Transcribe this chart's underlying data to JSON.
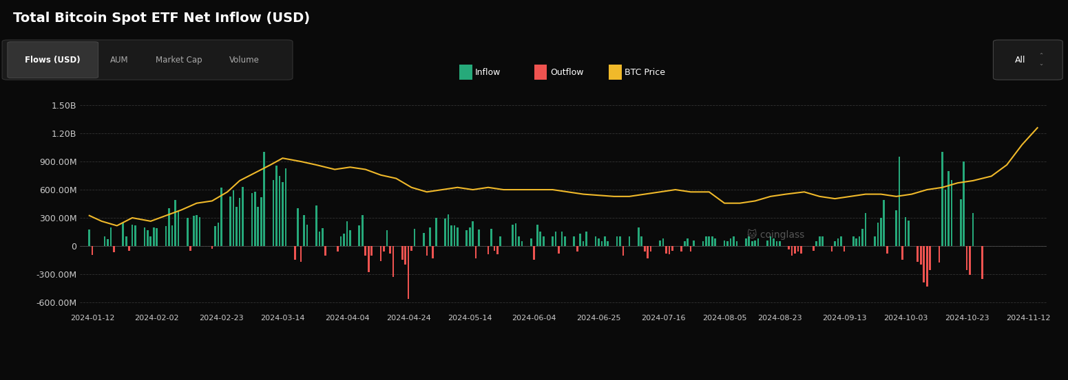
{
  "title": "Total Bitcoin Spot ETF Net Inflow (USD)",
  "bg_color": "#0a0a0a",
  "text_color": "#cccccc",
  "grid_color": "#333333",
  "inflow_color": "#26a97a",
  "outflow_color": "#ef5350",
  "btc_color": "#f0b92a",
  "ylabel_color": "#999999",
  "yticks": [
    "1.50B",
    "1.20B",
    "900.00M",
    "600.00M",
    "300.00M",
    "0",
    "-300.00M",
    "-600.00M"
  ],
  "ytick_vals": [
    1500000000,
    1200000000,
    900000000,
    600000000,
    300000000,
    0,
    -300000000,
    -600000000
  ],
  "ylim": [
    -700000000,
    1650000000
  ],
  "xtick_labels": [
    "2024-01-12",
    "2024-02-02",
    "2024-02-23",
    "2024-03-14",
    "2024-04-04",
    "2024-04-24",
    "2024-05-14",
    "2024-06-04",
    "2024-06-25",
    "2024-07-16",
    "2024-08-05",
    "2024-08-23",
    "2024-09-13",
    "2024-10-03",
    "2024-10-23",
    "2024-11-12"
  ],
  "bar_dates": [
    "2024-01-11",
    "2024-01-12",
    "2024-01-16",
    "2024-01-17",
    "2024-01-18",
    "2024-01-19",
    "2024-01-22",
    "2024-01-23",
    "2024-01-24",
    "2024-01-25",
    "2024-01-26",
    "2024-01-29",
    "2024-01-30",
    "2024-01-31",
    "2024-02-01",
    "2024-02-02",
    "2024-02-05",
    "2024-02-06",
    "2024-02-07",
    "2024-02-08",
    "2024-02-09",
    "2024-02-12",
    "2024-02-13",
    "2024-02-14",
    "2024-02-15",
    "2024-02-16",
    "2024-02-20",
    "2024-02-21",
    "2024-02-22",
    "2024-02-23",
    "2024-02-26",
    "2024-02-27",
    "2024-02-28",
    "2024-02-29",
    "2024-03-01",
    "2024-03-04",
    "2024-03-05",
    "2024-03-06",
    "2024-03-07",
    "2024-03-08",
    "2024-03-11",
    "2024-03-12",
    "2024-03-13",
    "2024-03-14",
    "2024-03-15",
    "2024-03-18",
    "2024-03-19",
    "2024-03-20",
    "2024-03-21",
    "2024-03-22",
    "2024-03-25",
    "2024-03-26",
    "2024-03-27",
    "2024-03-28",
    "2024-04-01",
    "2024-04-02",
    "2024-04-03",
    "2024-04-04",
    "2024-04-05",
    "2024-04-08",
    "2024-04-09",
    "2024-04-10",
    "2024-04-11",
    "2024-04-12",
    "2024-04-15",
    "2024-04-16",
    "2024-04-17",
    "2024-04-18",
    "2024-04-19",
    "2024-04-22",
    "2024-04-23",
    "2024-04-24",
    "2024-04-25",
    "2024-04-26",
    "2024-04-29",
    "2024-04-30",
    "2024-05-01",
    "2024-05-02",
    "2024-05-03",
    "2024-05-06",
    "2024-05-07",
    "2024-05-08",
    "2024-05-09",
    "2024-05-10",
    "2024-05-13",
    "2024-05-14",
    "2024-05-15",
    "2024-05-16",
    "2024-05-17",
    "2024-05-20",
    "2024-05-21",
    "2024-05-22",
    "2024-05-23",
    "2024-05-24",
    "2024-05-28",
    "2024-05-29",
    "2024-05-30",
    "2024-05-31",
    "2024-06-03",
    "2024-06-04",
    "2024-06-05",
    "2024-06-06",
    "2024-06-07",
    "2024-06-10",
    "2024-06-11",
    "2024-06-12",
    "2024-06-13",
    "2024-06-14",
    "2024-06-17",
    "2024-06-18",
    "2024-06-19",
    "2024-06-20",
    "2024-06-21",
    "2024-06-24",
    "2024-06-25",
    "2024-06-26",
    "2024-06-27",
    "2024-06-28",
    "2024-07-01",
    "2024-07-02",
    "2024-07-03",
    "2024-07-05",
    "2024-07-08",
    "2024-07-09",
    "2024-07-10",
    "2024-07-11",
    "2024-07-12",
    "2024-07-15",
    "2024-07-16",
    "2024-07-17",
    "2024-07-18",
    "2024-07-19",
    "2024-07-22",
    "2024-07-23",
    "2024-07-24",
    "2024-07-25",
    "2024-07-26",
    "2024-07-29",
    "2024-07-30",
    "2024-07-31",
    "2024-08-01",
    "2024-08-02",
    "2024-08-05",
    "2024-08-06",
    "2024-08-07",
    "2024-08-08",
    "2024-08-09",
    "2024-08-12",
    "2024-08-13",
    "2024-08-14",
    "2024-08-15",
    "2024-08-16",
    "2024-08-19",
    "2024-08-20",
    "2024-08-21",
    "2024-08-22",
    "2024-08-23",
    "2024-08-26",
    "2024-08-27",
    "2024-08-28",
    "2024-08-29",
    "2024-08-30",
    "2024-09-03",
    "2024-09-04",
    "2024-09-05",
    "2024-09-06",
    "2024-09-09",
    "2024-09-10",
    "2024-09-11",
    "2024-09-12",
    "2024-09-13",
    "2024-09-16",
    "2024-09-17",
    "2024-09-18",
    "2024-09-19",
    "2024-09-20",
    "2024-09-23",
    "2024-09-24",
    "2024-09-25",
    "2024-09-26",
    "2024-09-27",
    "2024-09-30",
    "2024-10-01",
    "2024-10-02",
    "2024-10-03",
    "2024-10-04",
    "2024-10-07",
    "2024-10-08",
    "2024-10-09",
    "2024-10-10",
    "2024-10-11",
    "2024-10-14",
    "2024-10-15",
    "2024-10-16",
    "2024-10-17",
    "2024-10-18",
    "2024-10-21",
    "2024-10-22",
    "2024-10-23",
    "2024-10-24",
    "2024-10-25",
    "2024-10-28",
    "2024-10-29",
    "2024-10-30",
    "2024-10-31",
    "2024-11-01",
    "2024-11-04",
    "2024-11-05",
    "2024-11-06",
    "2024-11-07",
    "2024-11-08",
    "2024-11-11",
    "2024-11-12",
    "2024-11-13",
    "2024-11-14",
    "2024-11-15"
  ],
  "bar_values": [
    178000000,
    -95000000,
    100000000,
    70000000,
    200000000,
    -70000000,
    250000000,
    100000000,
    -50000000,
    230000000,
    220000000,
    200000000,
    170000000,
    100000000,
    200000000,
    190000000,
    210000000,
    400000000,
    220000000,
    490000000,
    380000000,
    300000000,
    -50000000,
    320000000,
    330000000,
    310000000,
    -30000000,
    210000000,
    250000000,
    620000000,
    530000000,
    590000000,
    420000000,
    510000000,
    630000000,
    560000000,
    580000000,
    420000000,
    520000000,
    1000000000,
    700000000,
    860000000,
    750000000,
    680000000,
    830000000,
    -150000000,
    400000000,
    -170000000,
    330000000,
    230000000,
    430000000,
    150000000,
    190000000,
    -100000000,
    -60000000,
    100000000,
    130000000,
    260000000,
    170000000,
    220000000,
    330000000,
    -100000000,
    -280000000,
    -100000000,
    -160000000,
    -60000000,
    170000000,
    -80000000,
    -330000000,
    -150000000,
    -200000000,
    -563000000,
    -55000000,
    180000000,
    140000000,
    -100000000,
    200000000,
    -130000000,
    300000000,
    290000000,
    340000000,
    220000000,
    220000000,
    200000000,
    170000000,
    200000000,
    260000000,
    -130000000,
    175000000,
    -85000000,
    180000000,
    -50000000,
    -90000000,
    100000000,
    230000000,
    240000000,
    100000000,
    50000000,
    80000000,
    -150000000,
    230000000,
    150000000,
    100000000,
    100000000,
    150000000,
    -80000000,
    150000000,
    100000000,
    100000000,
    -60000000,
    130000000,
    50000000,
    150000000,
    100000000,
    80000000,
    50000000,
    100000000,
    50000000,
    100000000,
    100000000,
    -100000000,
    100000000,
    200000000,
    100000000,
    -60000000,
    -130000000,
    -60000000,
    60000000,
    80000000,
    -80000000,
    -90000000,
    -50000000,
    -60000000,
    50000000,
    80000000,
    -60000000,
    60000000,
    50000000,
    100000000,
    100000000,
    100000000,
    80000000,
    60000000,
    50000000,
    80000000,
    100000000,
    50000000,
    80000000,
    100000000,
    50000000,
    60000000,
    80000000,
    60000000,
    100000000,
    80000000,
    50000000,
    50000000,
    -40000000,
    -100000000,
    -80000000,
    -60000000,
    -80000000,
    -50000000,
    50000000,
    100000000,
    100000000,
    -60000000,
    50000000,
    80000000,
    100000000,
    -60000000,
    100000000,
    80000000,
    100000000,
    180000000,
    350000000,
    100000000,
    250000000,
    300000000,
    490000000,
    -80000000,
    380000000,
    950000000,
    -150000000,
    310000000,
    270000000,
    -170000000,
    -200000000,
    -390000000,
    -430000000,
    -260000000,
    -180000000,
    1000000000,
    600000000,
    800000000,
    700000000,
    500000000,
    900000000,
    -260000000,
    -310000000,
    350000000,
    -350000000
  ],
  "btc_price_dates": [
    "2024-01-11",
    "2024-01-15",
    "2024-01-20",
    "2024-01-25",
    "2024-01-31",
    "2024-02-05",
    "2024-02-10",
    "2024-02-15",
    "2024-02-20",
    "2024-02-25",
    "2024-02-29",
    "2024-03-05",
    "2024-03-10",
    "2024-03-14",
    "2024-03-20",
    "2024-03-25",
    "2024-03-31",
    "2024-04-05",
    "2024-04-10",
    "2024-04-15",
    "2024-04-20",
    "2024-04-25",
    "2024-04-30",
    "2024-05-05",
    "2024-05-10",
    "2024-05-15",
    "2024-05-20",
    "2024-05-25",
    "2024-05-31",
    "2024-06-05",
    "2024-06-10",
    "2024-06-15",
    "2024-06-20",
    "2024-06-25",
    "2024-06-30",
    "2024-07-05",
    "2024-07-10",
    "2024-07-15",
    "2024-07-20",
    "2024-07-25",
    "2024-07-31",
    "2024-08-05",
    "2024-08-10",
    "2024-08-15",
    "2024-08-20",
    "2024-08-25",
    "2024-08-31",
    "2024-09-05",
    "2024-09-10",
    "2024-09-15",
    "2024-09-20",
    "2024-09-25",
    "2024-09-30",
    "2024-10-05",
    "2024-10-10",
    "2024-10-15",
    "2024-10-20",
    "2024-10-25",
    "2024-10-31",
    "2024-11-05",
    "2024-11-10",
    "2024-11-15"
  ],
  "btc_price_norm": [
    0.27,
    0.22,
    0.18,
    0.25,
    0.22,
    0.27,
    0.32,
    0.38,
    0.4,
    0.48,
    0.58,
    0.65,
    0.72,
    0.78,
    0.75,
    0.72,
    0.68,
    0.7,
    0.68,
    0.63,
    0.6,
    0.52,
    0.48,
    0.5,
    0.52,
    0.5,
    0.52,
    0.5,
    0.5,
    0.5,
    0.5,
    0.48,
    0.46,
    0.45,
    0.44,
    0.44,
    0.46,
    0.48,
    0.5,
    0.48,
    0.48,
    0.38,
    0.38,
    0.4,
    0.44,
    0.46,
    0.48,
    0.44,
    0.42,
    0.44,
    0.46,
    0.46,
    0.44,
    0.46,
    0.5,
    0.52,
    0.56,
    0.58,
    0.62,
    0.72,
    0.9,
    1.05
  ],
  "btc_price_scale_min": 40000,
  "btc_price_scale_max": 90000,
  "legend_items": [
    {
      "label": "Inflow",
      "color": "#26a97a"
    },
    {
      "label": "Outflow",
      "color": "#ef5350"
    },
    {
      "label": "BTC Price",
      "color": "#f0b92a"
    }
  ],
  "tab_labels": [
    "Flows (USD)",
    "AUM",
    "Market Cap",
    "Volume"
  ],
  "active_tab": "Flows (USD)",
  "filter_label": "All"
}
